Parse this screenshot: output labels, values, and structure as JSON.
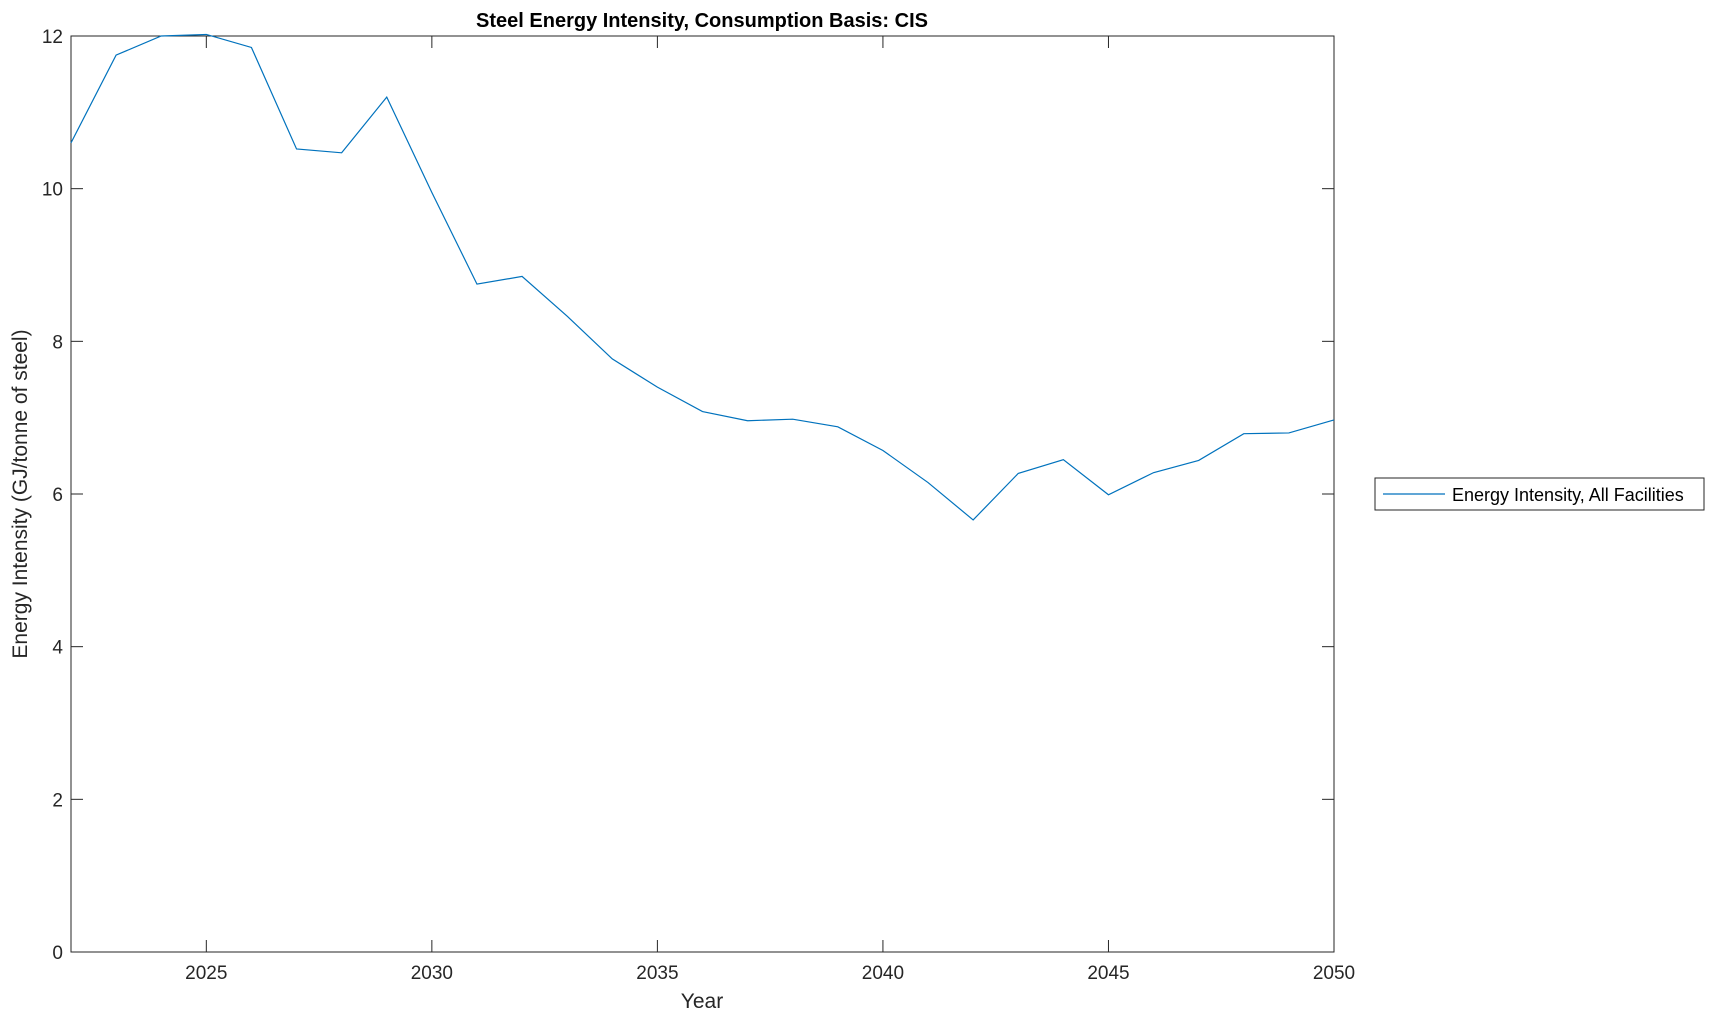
{
  "chart_data": {
    "type": "line",
    "title": "Steel Energy Intensity, Consumption Basis: CIS",
    "xlabel": "Year",
    "ylabel": "Energy Intensity (GJ/tonne of steel)",
    "xlim": [
      2022,
      2050
    ],
    "ylim": [
      0,
      12
    ],
    "xticks": [
      "2025",
      "2030",
      "2035",
      "2040",
      "2045",
      "2050"
    ],
    "yticks": [
      "0",
      "2",
      "4",
      "6",
      "8",
      "10",
      "12"
    ],
    "grid": false,
    "legend_placement": "outside-right",
    "series": [
      {
        "name": "Energy Intensity, All Facilities",
        "color": "#0072BD",
        "x": [
          2022,
          2023,
          2024,
          2025,
          2026,
          2027,
          2028,
          2029,
          2030,
          2031,
          2032,
          2033,
          2034,
          2035,
          2036,
          2037,
          2038,
          2039,
          2040,
          2041,
          2042,
          2043,
          2044,
          2045,
          2046,
          2047,
          2048,
          2049,
          2050
        ],
        "y": [
          10.6,
          11.75,
          12.0,
          12.02,
          11.85,
          10.52,
          10.47,
          11.2,
          9.95,
          8.75,
          8.85,
          8.33,
          7.77,
          7.4,
          7.08,
          6.96,
          6.98,
          6.88,
          6.57,
          6.15,
          5.66,
          6.27,
          6.45,
          5.99,
          6.28,
          6.44,
          6.79,
          6.8,
          6.97
        ]
      }
    ]
  }
}
